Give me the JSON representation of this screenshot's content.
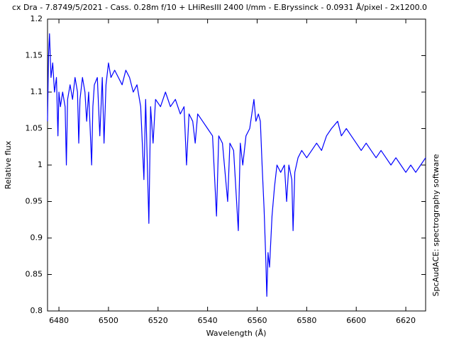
{
  "chart_data": {
    "type": "line",
    "title": "cx Dra - 7.8749/5/2021 - Cass. 0.28m f/10 + LHiResIII 2400 l/mm - E.Bryssinck - 0.0931 Å/pixel - 2x1200.0",
    "xlabel": "Wavelength (Å)",
    "ylabel": "Relative flux",
    "side_note": "SpcAudACE: spectrography software",
    "color": "#0000ff",
    "grid": false,
    "xlim": [
      6475.4,
      6628
    ],
    "ylim": [
      0.8,
      1.2
    ],
    "xticks": [
      6480,
      6500,
      6520,
      6540,
      6560,
      6580,
      6600,
      6620
    ],
    "yticks": [
      0.8,
      0.85,
      0.9,
      0.95,
      1,
      1.05,
      1.1,
      1.15,
      1.2
    ],
    "x": [
      6475.4,
      6475.8,
      6476.2,
      6476.8,
      6477.5,
      6478.2,
      6479,
      6479.6,
      6480,
      6480.6,
      6481.5,
      6482.5,
      6483,
      6483.5,
      6484.5,
      6485.5,
      6486.5,
      6487.5,
      6488,
      6488.5,
      6489.5,
      6490.5,
      6491.2,
      6492,
      6493.2,
      6493.7,
      6494.3,
      6495.5,
      6496.5,
      6497.5,
      6498.2,
      6499,
      6500,
      6501,
      6502.5,
      6504,
      6505.5,
      6507,
      6508.5,
      6510,
      6511.5,
      6513,
      6514.3,
      6515,
      6516.3,
      6517,
      6518,
      6519,
      6521,
      6523,
      6525,
      6527,
      6529,
      6530.5,
      6531.5,
      6532.5,
      6534,
      6535,
      6536,
      6538,
      6540,
      6542,
      6543.6,
      6544.5,
      6546,
      6548.1,
      6549,
      6550.5,
      6552.4,
      6553.2,
      6554.2,
      6555.5,
      6557,
      6558.7,
      6559.5,
      6560.5,
      6561.3,
      6562,
      6562.8,
      6563.5,
      6563.9,
      6564.4,
      6565,
      6566,
      6567,
      6568,
      6569.5,
      6571,
      6571.9,
      6572.8,
      6574,
      6574.5,
      6575.2,
      6576.5,
      6578,
      6580,
      6582,
      6584,
      6586,
      6588,
      6590,
      6592.5,
      6594,
      6596,
      6598,
      6600,
      6602,
      6604,
      6606,
      6608,
      6610,
      6612,
      6614,
      6616,
      6618,
      6620,
      6622,
      6624,
      6626,
      6628
    ],
    "values": [
      1.06,
      1.15,
      1.18,
      1.12,
      1.14,
      1.1,
      1.12,
      1.04,
      1.1,
      1.08,
      1.1,
      1.08,
      1,
      1.09,
      1.11,
      1.09,
      1.12,
      1.1,
      1.03,
      1.09,
      1.12,
      1.1,
      1.06,
      1.1,
      1,
      1.08,
      1.11,
      1.12,
      1.04,
      1.12,
      1.03,
      1.11,
      1.14,
      1.12,
      1.13,
      1.12,
      1.11,
      1.13,
      1.12,
      1.1,
      1.11,
      1.08,
      0.98,
      1.09,
      0.92,
      1.08,
      1.03,
      1.09,
      1.08,
      1.1,
      1.08,
      1.09,
      1.07,
      1.08,
      1,
      1.07,
      1.06,
      1.03,
      1.07,
      1.06,
      1.05,
      1.04,
      0.93,
      1.04,
      1.03,
      0.95,
      1.03,
      1.02,
      0.91,
      1.03,
      1,
      1.04,
      1.05,
      1.09,
      1.06,
      1.07,
      1.06,
      1,
      0.94,
      0.87,
      0.82,
      0.88,
      0.86,
      0.93,
      0.97,
      1,
      0.99,
      1,
      0.95,
      1,
      0.98,
      0.91,
      0.99,
      1.01,
      1.02,
      1.01,
      1.02,
      1.03,
      1.02,
      1.04,
      1.05,
      1.06,
      1.04,
      1.05,
      1.04,
      1.03,
      1.02,
      1.03,
      1.02,
      1.01,
      1.02,
      1.01,
      1,
      1.01,
      1,
      0.99,
      1,
      0.99,
      1,
      1.01
    ]
  }
}
